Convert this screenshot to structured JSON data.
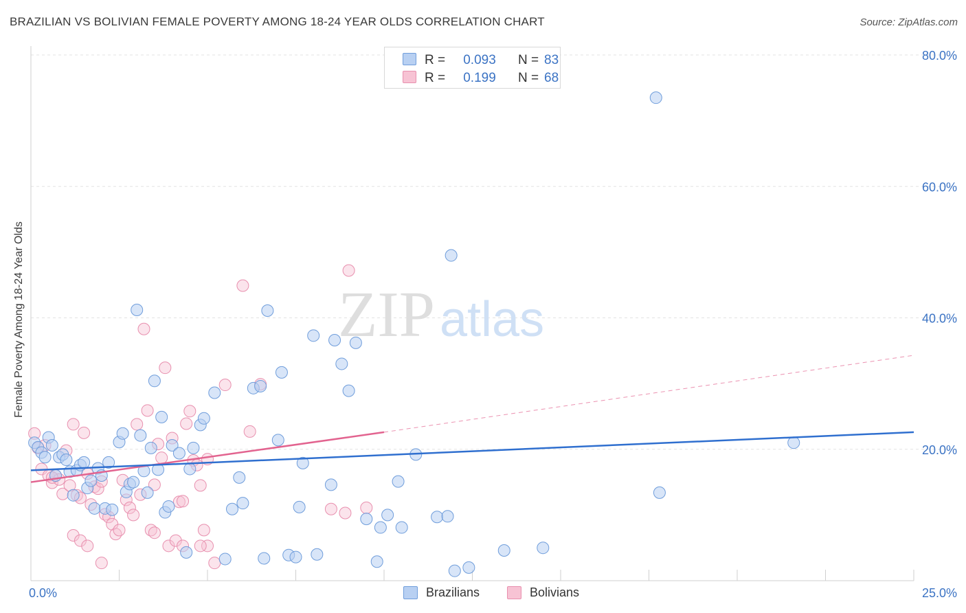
{
  "title": "BRAZILIAN VS BOLIVIAN FEMALE POVERTY AMONG 18-24 YEAR OLDS CORRELATION CHART",
  "source": "Source: ZipAtlas.com",
  "watermark": {
    "part1": "ZIP",
    "part2": "atlas"
  },
  "legend_stats": [
    {
      "r_label": "R =",
      "r_value": "0.093",
      "n_label": "N =",
      "n_value": "83"
    },
    {
      "r_label": "R =",
      "r_value": "0.199",
      "n_label": "N =",
      "n_value": "68"
    }
  ],
  "colors": {
    "brazilians_fill": "#b8d0f2",
    "brazilians_stroke": "#6f9ddb",
    "brazilians_line": "#2f6fcf",
    "bolivians_fill": "#f7c3d4",
    "bolivians_stroke": "#e88fae",
    "bolivians_line": "#e2638f",
    "tick_label": "#3b73c4",
    "grid": "#e3e3e3"
  },
  "chart_data": {
    "type": "scatter",
    "title": "BRAZILIAN VS BOLIVIAN FEMALE POVERTY AMONG 18-24 YEAR OLDS CORRELATION CHART",
    "xlabel": "",
    "ylabel": "Female Poverty Among 18-24 Year Olds",
    "xlim": [
      0,
      25
    ],
    "ylim": [
      0,
      80
    ],
    "x_tick_labels": [
      "0.0%",
      "25.0%"
    ],
    "y_ticks": [
      20,
      40,
      60,
      80
    ],
    "y_tick_labels": [
      "20.0%",
      "40.0%",
      "60.0%",
      "80.0%"
    ],
    "grid": true,
    "legend_position": "top-center",
    "series": [
      {
        "name": "Brazilians",
        "r": 0.093,
        "n": 83,
        "trend": {
          "x": [
            0,
            25
          ],
          "y": [
            16.8,
            22.6
          ]
        },
        "points": [
          [
            0.1,
            21.0
          ],
          [
            0.2,
            20.3
          ],
          [
            0.3,
            19.5
          ],
          [
            0.4,
            18.8
          ],
          [
            0.5,
            21.8
          ],
          [
            0.6,
            20.6
          ],
          [
            0.7,
            16.0
          ],
          [
            0.8,
            18.8
          ],
          [
            0.9,
            19.2
          ],
          [
            1.0,
            18.4
          ],
          [
            1.1,
            16.6
          ],
          [
            1.2,
            13.0
          ],
          [
            1.3,
            16.8
          ],
          [
            1.4,
            17.6
          ],
          [
            1.5,
            18.0
          ],
          [
            1.6,
            14.1
          ],
          [
            1.7,
            15.2
          ],
          [
            1.8,
            11.0
          ],
          [
            1.9,
            17.1
          ],
          [
            2.0,
            16.0
          ],
          [
            2.1,
            11.0
          ],
          [
            2.2,
            18.0
          ],
          [
            2.3,
            10.8
          ],
          [
            2.5,
            21.1
          ],
          [
            2.6,
            22.4
          ],
          [
            2.7,
            13.5
          ],
          [
            2.8,
            14.7
          ],
          [
            2.9,
            15.0
          ],
          [
            3.0,
            41.2
          ],
          [
            3.1,
            22.1
          ],
          [
            3.2,
            16.7
          ],
          [
            3.3,
            13.4
          ],
          [
            3.4,
            20.2
          ],
          [
            3.5,
            30.4
          ],
          [
            3.6,
            16.9
          ],
          [
            3.7,
            24.9
          ],
          [
            3.8,
            10.4
          ],
          [
            3.9,
            11.3
          ],
          [
            4.0,
            20.6
          ],
          [
            4.2,
            19.4
          ],
          [
            4.4,
            4.3
          ],
          [
            4.5,
            17.0
          ],
          [
            4.6,
            20.2
          ],
          [
            4.8,
            23.7
          ],
          [
            4.9,
            24.7
          ],
          [
            5.2,
            28.6
          ],
          [
            5.5,
            3.3
          ],
          [
            5.7,
            10.9
          ],
          [
            5.9,
            15.7
          ],
          [
            6.0,
            11.8
          ],
          [
            6.3,
            29.3
          ],
          [
            6.5,
            29.6
          ],
          [
            6.6,
            3.4
          ],
          [
            6.7,
            41.1
          ],
          [
            7.0,
            21.4
          ],
          [
            7.1,
            31.7
          ],
          [
            7.3,
            3.9
          ],
          [
            7.5,
            3.6
          ],
          [
            7.6,
            11.2
          ],
          [
            7.7,
            17.9
          ],
          [
            8.0,
            37.3
          ],
          [
            8.1,
            4.0
          ],
          [
            8.5,
            14.6
          ],
          [
            8.6,
            36.6
          ],
          [
            8.8,
            33.0
          ],
          [
            9.0,
            28.9
          ],
          [
            9.2,
            36.2
          ],
          [
            9.5,
            9.4
          ],
          [
            9.8,
            2.9
          ],
          [
            9.9,
            8.1
          ],
          [
            10.1,
            10.0
          ],
          [
            10.4,
            15.1
          ],
          [
            10.5,
            8.1
          ],
          [
            10.9,
            19.2
          ],
          [
            11.5,
            9.7
          ],
          [
            11.8,
            9.8
          ],
          [
            11.9,
            49.5
          ],
          [
            12.0,
            1.5
          ],
          [
            12.4,
            2.0
          ],
          [
            13.4,
            4.6
          ],
          [
            14.5,
            5.0
          ],
          [
            17.7,
            73.5
          ],
          [
            17.8,
            13.4
          ],
          [
            21.6,
            21.0
          ]
        ]
      },
      {
        "name": "Bolivians",
        "r": 0.199,
        "n": 68,
        "trend": {
          "x": [
            0,
            10
          ],
          "y": [
            15.0,
            22.6
          ]
        },
        "trend_extension": {
          "x": [
            10,
            25
          ],
          "y": [
            22.6,
            34.3
          ]
        },
        "points": [
          [
            0.1,
            22.4
          ],
          [
            0.2,
            20.2
          ],
          [
            0.3,
            17.0
          ],
          [
            0.4,
            20.6
          ],
          [
            0.5,
            16.0
          ],
          [
            0.6,
            14.9
          ],
          [
            0.7,
            16.0
          ],
          [
            0.8,
            15.4
          ],
          [
            0.9,
            13.2
          ],
          [
            1.0,
            19.8
          ],
          [
            1.1,
            14.5
          ],
          [
            1.2,
            23.8
          ],
          [
            1.3,
            13.0
          ],
          [
            1.4,
            12.6
          ],
          [
            1.5,
            22.5
          ],
          [
            1.6,
            16.3
          ],
          [
            1.7,
            11.6
          ],
          [
            1.8,
            14.3
          ],
          [
            1.9,
            14.0
          ],
          [
            2.0,
            15.1
          ],
          [
            2.1,
            10.1
          ],
          [
            2.2,
            9.7
          ],
          [
            2.3,
            8.6
          ],
          [
            2.4,
            7.1
          ],
          [
            2.5,
            7.7
          ],
          [
            2.6,
            15.3
          ],
          [
            2.7,
            12.3
          ],
          [
            2.8,
            11.1
          ],
          [
            2.9,
            10.0
          ],
          [
            3.0,
            23.8
          ],
          [
            3.1,
            13.1
          ],
          [
            3.2,
            38.3
          ],
          [
            3.3,
            25.9
          ],
          [
            3.4,
            7.7
          ],
          [
            3.5,
            7.3
          ],
          [
            3.6,
            20.8
          ],
          [
            3.7,
            18.7
          ],
          [
            3.8,
            32.4
          ],
          [
            3.9,
            5.3
          ],
          [
            4.0,
            21.7
          ],
          [
            4.1,
            6.1
          ],
          [
            4.2,
            12.0
          ],
          [
            4.3,
            12.1
          ],
          [
            4.4,
            23.9
          ],
          [
            4.5,
            25.8
          ],
          [
            4.6,
            18.3
          ],
          [
            4.7,
            17.6
          ],
          [
            4.8,
            14.5
          ],
          [
            4.9,
            7.7
          ],
          [
            5.0,
            5.3
          ],
          [
            5.2,
            2.7
          ],
          [
            5.5,
            29.8
          ],
          [
            6.0,
            44.9
          ],
          [
            6.2,
            22.7
          ],
          [
            6.5,
            29.9
          ],
          [
            8.5,
            10.9
          ],
          [
            8.9,
            10.3
          ],
          [
            9.0,
            47.2
          ],
          [
            9.5,
            11.1
          ],
          [
            1.2,
            6.9
          ],
          [
            1.4,
            6.1
          ],
          [
            1.6,
            5.3
          ],
          [
            2.0,
            2.7
          ],
          [
            3.5,
            14.6
          ],
          [
            4.3,
            5.3
          ],
          [
            4.8,
            5.3
          ],
          [
            5.0,
            18.5
          ],
          [
            0.6,
            15.7
          ]
        ]
      }
    ]
  },
  "legend_bottom": [
    {
      "label": "Brazilians"
    },
    {
      "label": "Bolivians"
    }
  ]
}
